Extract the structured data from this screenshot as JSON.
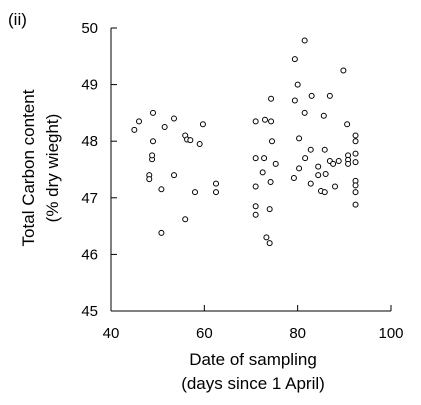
{
  "panel_label": "(ii)",
  "chart_data": {
    "type": "scatter",
    "title": "",
    "xlabel": [
      "Date of sampling",
      "(days since 1 April)"
    ],
    "ylabel": [
      "Total Carbon content",
      "(% dry wieght)"
    ],
    "xlim": [
      40,
      100
    ],
    "ylim": [
      45,
      50
    ],
    "x_ticks": [
      40,
      60,
      80,
      100
    ],
    "y_ticks": [
      45,
      46,
      47,
      48,
      49,
      50
    ],
    "grid": false,
    "legend": "none",
    "marker": "open-circle",
    "marker_color": "#000000",
    "series": [
      {
        "points": [
          [
            45.0,
            48.2
          ],
          [
            46.0,
            48.35
          ],
          [
            48.2,
            47.4
          ],
          [
            48.2,
            47.33
          ],
          [
            48.8,
            47.68
          ],
          [
            48.8,
            47.75
          ],
          [
            49.0,
            48.5
          ],
          [
            49.0,
            48.0
          ],
          [
            50.8,
            46.38
          ],
          [
            50.8,
            47.15
          ],
          [
            51.5,
            48.25
          ],
          [
            53.5,
            48.4
          ],
          [
            53.5,
            47.4
          ],
          [
            55.9,
            46.62
          ],
          [
            55.9,
            48.1
          ],
          [
            56.3,
            48.03
          ],
          [
            57.0,
            48.02
          ],
          [
            58.0,
            47.1
          ],
          [
            59.0,
            47.95
          ],
          [
            59.7,
            48.3
          ],
          [
            62.5,
            47.25
          ],
          [
            62.5,
            47.1
          ],
          [
            71.0,
            48.35
          ],
          [
            71.0,
            47.7
          ],
          [
            71.0,
            47.2
          ],
          [
            71.0,
            46.85
          ],
          [
            71.0,
            46.7
          ],
          [
            72.5,
            47.45
          ],
          [
            73.0,
            48.38
          ],
          [
            73.3,
            46.3
          ],
          [
            74.0,
            46.2
          ],
          [
            74.0,
            46.8
          ],
          [
            74.2,
            47.28
          ],
          [
            74.3,
            48.75
          ],
          [
            74.3,
            48.35
          ],
          [
            74.5,
            48.0
          ],
          [
            75.3,
            47.6
          ],
          [
            79.2,
            47.35
          ],
          [
            79.4,
            48.72
          ],
          [
            79.4,
            49.45
          ],
          [
            80.0,
            49.0
          ],
          [
            80.3,
            48.05
          ],
          [
            80.3,
            47.52
          ],
          [
            81.5,
            49.78
          ],
          [
            81.5,
            48.5
          ],
          [
            81.6,
            47.7
          ],
          [
            82.8,
            47.85
          ],
          [
            82.8,
            47.25
          ],
          [
            83.0,
            48.8
          ],
          [
            84.4,
            47.4
          ],
          [
            84.4,
            47.55
          ],
          [
            85.0,
            47.12
          ],
          [
            85.6,
            48.45
          ],
          [
            85.8,
            47.85
          ],
          [
            85.8,
            47.1
          ],
          [
            86.9,
            48.8
          ],
          [
            86.9,
            47.65
          ],
          [
            87.6,
            47.6
          ],
          [
            88.8,
            47.65
          ],
          [
            88.0,
            47.2
          ],
          [
            89.8,
            49.25
          ],
          [
            90.6,
            48.3
          ],
          [
            90.8,
            47.75
          ],
          [
            90.8,
            47.67
          ],
          [
            90.8,
            47.6
          ],
          [
            92.4,
            48.1
          ],
          [
            92.4,
            48.0
          ],
          [
            92.4,
            47.78
          ],
          [
            92.4,
            47.63
          ],
          [
            92.4,
            47.3
          ],
          [
            92.4,
            47.22
          ],
          [
            92.4,
            47.1
          ],
          [
            92.4,
            46.88
          ],
          [
            86.0,
            47.42
          ],
          [
            72.8,
            47.7
          ]
        ]
      }
    ]
  }
}
